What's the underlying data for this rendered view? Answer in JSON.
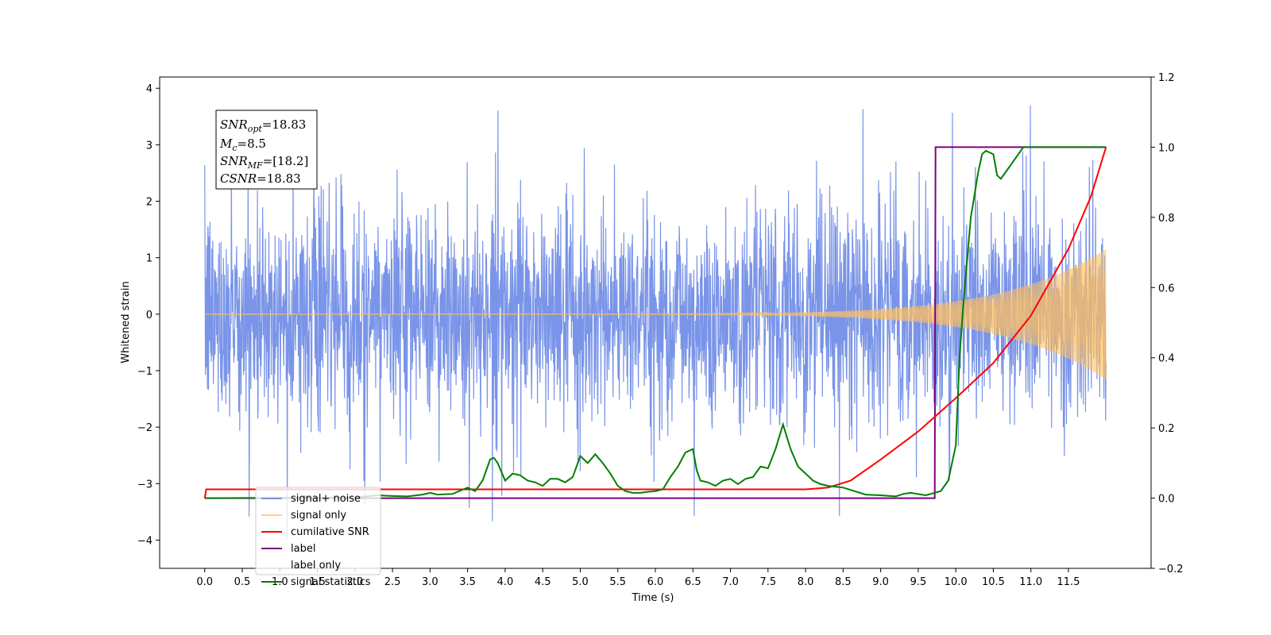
{
  "chart_data": {
    "type": "line",
    "xlabel": "Time (s)",
    "ylabel": "Whitened strain",
    "xlim": [
      -0.6,
      12.6
    ],
    "ylim": [
      -4.5,
      4.2
    ],
    "y2lim": [
      -0.2,
      1.2
    ],
    "x_ticks": [
      "0.0",
      "0.5",
      "1.0",
      "1.5",
      "2.0",
      "2.5",
      "3.0",
      "3.5",
      "4.0",
      "4.5",
      "5.0",
      "5.5",
      "6.0",
      "6.5",
      "7.0",
      "7.5",
      "8.0",
      "8.5",
      "9.0",
      "9.5",
      "10.0",
      "10.5",
      "11.0",
      "11.5"
    ],
    "y_ticks": [
      "−4",
      "−3",
      "−2",
      "−1",
      "0",
      "1",
      "2",
      "3",
      "4"
    ],
    "y2_ticks": [
      "−0.2",
      "0.0",
      "0.2",
      "0.4",
      "0.6",
      "0.8",
      "1.0",
      "1.2"
    ],
    "legend_position": "lower-left",
    "annotation": {
      "snr_opt": "18.83",
      "mc": "8.5",
      "snr_mf": "[18.2]",
      "csnr": "18.83"
    },
    "series": [
      {
        "name": "signal+ noise",
        "color": "#6a88e6",
        "axis": "left",
        "description": "noise-dominated strain, amplitude about ±1.5 with spikes to ±3.8, t = 0 to 12"
      },
      {
        "name": "signal only",
        "color": "#ffbf60",
        "axis": "left",
        "description": "chirp signal near 0 until about t=8, growing to about ±1.15 at t=12"
      },
      {
        "name": "cumilative SNR",
        "color": "#ff0000",
        "axis": "right",
        "x": [
          0.0,
          0.02,
          8.0,
          8.3,
          8.6,
          9.0,
          9.5,
          10.0,
          10.5,
          11.0,
          11.5,
          11.8,
          12.0
        ],
        "values": [
          0.0,
          0.025,
          0.025,
          0.03,
          0.05,
          0.11,
          0.19,
          0.285,
          0.385,
          0.52,
          0.71,
          0.86,
          1.0
        ]
      },
      {
        "name": "label",
        "color": "#800080",
        "axis": "right",
        "x": [
          0.0,
          9.72,
          9.73,
          12.0
        ],
        "values": [
          0.0,
          0.0,
          1.0,
          1.0
        ]
      },
      {
        "name": "label only",
        "color": "#800080",
        "axis": "right",
        "description": "hidden behind label line"
      },
      {
        "name": "signal statistics",
        "color": "#008000",
        "axis": "right",
        "x": [
          0.0,
          2.0,
          2.3,
          2.5,
          2.7,
          2.9,
          3.0,
          3.1,
          3.3,
          3.5,
          3.6,
          3.7,
          3.8,
          3.85,
          3.9,
          4.0,
          4.1,
          4.2,
          4.3,
          4.4,
          4.5,
          4.6,
          4.7,
          4.8,
          4.9,
          5.0,
          5.1,
          5.2,
          5.3,
          5.4,
          5.5,
          5.6,
          5.7,
          5.8,
          5.9,
          6.0,
          6.1,
          6.2,
          6.3,
          6.4,
          6.5,
          6.55,
          6.6,
          6.7,
          6.8,
          6.9,
          7.0,
          7.1,
          7.2,
          7.3,
          7.4,
          7.5,
          7.6,
          7.7,
          7.8,
          7.9,
          8.0,
          8.1,
          8.2,
          8.3,
          8.5,
          8.8,
          9.0,
          9.2,
          9.3,
          9.4,
          9.6,
          9.8,
          9.9,
          10.0,
          10.05,
          10.1,
          10.2,
          10.3,
          10.35,
          10.4,
          10.5,
          10.55,
          10.6,
          10.7,
          10.8,
          10.9,
          11.0,
          11.5,
          12.0
        ],
        "values": [
          0.0,
          0.002,
          0.008,
          0.006,
          0.005,
          0.01,
          0.015,
          0.01,
          0.012,
          0.03,
          0.02,
          0.05,
          0.11,
          0.115,
          0.1,
          0.05,
          0.07,
          0.065,
          0.05,
          0.045,
          0.035,
          0.055,
          0.055,
          0.045,
          0.06,
          0.12,
          0.1,
          0.125,
          0.1,
          0.07,
          0.035,
          0.02,
          0.015,
          0.015,
          0.018,
          0.02,
          0.025,
          0.06,
          0.09,
          0.13,
          0.14,
          0.08,
          0.05,
          0.045,
          0.035,
          0.05,
          0.055,
          0.04,
          0.055,
          0.06,
          0.09,
          0.085,
          0.14,
          0.21,
          0.14,
          0.09,
          0.07,
          0.05,
          0.04,
          0.035,
          0.03,
          0.01,
          0.008,
          0.005,
          0.012,
          0.015,
          0.008,
          0.02,
          0.05,
          0.15,
          0.4,
          0.55,
          0.8,
          0.93,
          0.98,
          0.99,
          0.98,
          0.92,
          0.91,
          0.94,
          0.97,
          1.0,
          1.0,
          1.0,
          1.0
        ]
      }
    ]
  }
}
